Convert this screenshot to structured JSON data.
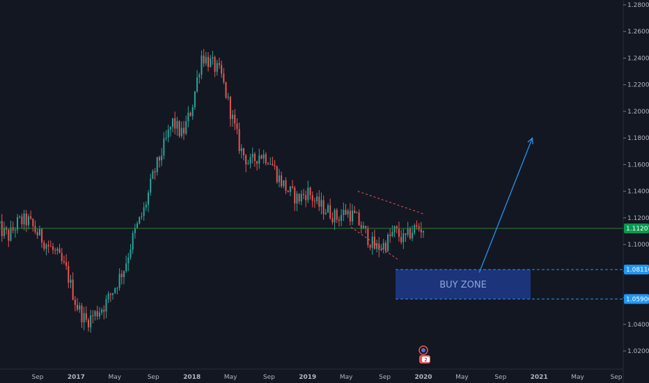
{
  "chart_data": {
    "type": "candlestick",
    "title": "",
    "price_axis": {
      "min": 1.0,
      "max": 1.29,
      "ticks": [
        "1.28000",
        "1.26000",
        "1.24000",
        "1.22000",
        "1.20000",
        "1.18000",
        "1.16000",
        "1.14000",
        "1.12000",
        "1.10000",
        "1.08000",
        "1.06000",
        "1.04000",
        "1.02000"
      ],
      "tick_values": [
        1.28,
        1.26,
        1.24,
        1.22,
        1.2,
        1.18,
        1.16,
        1.14,
        1.12,
        1.1,
        1.08,
        1.06,
        1.04,
        1.02
      ]
    },
    "time_axis": {
      "labels": [
        "Sep",
        "2017",
        "May",
        "Sep",
        "2018",
        "May",
        "Sep",
        "2019",
        "May",
        "Sep",
        "2020",
        "May",
        "Sep",
        "2021",
        "May",
        "Sep"
      ],
      "bold_labels": [
        "2017",
        "2018",
        "2019",
        "2020",
        "2021"
      ],
      "x_months": [
        0,
        4,
        8,
        12,
        16,
        20,
        24,
        28,
        32,
        36,
        40,
        44,
        48,
        52,
        56,
        60
      ]
    },
    "trend_points": [
      [
        -6,
        1.13
      ],
      [
        -5,
        1.125
      ],
      [
        -4,
        1.112
      ],
      [
        -3,
        1.106
      ],
      [
        -2,
        1.117
      ],
      [
        -1,
        1.118
      ],
      [
        0,
        1.108
      ],
      [
        1,
        1.1
      ],
      [
        2,
        1.092
      ],
      [
        3,
        1.08
      ],
      [
        4,
        1.055
      ],
      [
        5,
        1.042
      ],
      [
        6,
        1.048
      ],
      [
        7,
        1.055
      ],
      [
        8,
        1.068
      ],
      [
        9,
        1.083
      ],
      [
        10,
        1.108
      ],
      [
        11,
        1.125
      ],
      [
        12,
        1.152
      ],
      [
        13,
        1.172
      ],
      [
        14,
        1.192
      ],
      [
        15,
        1.182
      ],
      [
        16,
        1.203
      ],
      [
        17,
        1.242
      ],
      [
        18,
        1.236
      ],
      [
        19,
        1.228
      ],
      [
        20,
        1.2
      ],
      [
        21,
        1.172
      ],
      [
        22,
        1.16
      ],
      [
        23,
        1.168
      ],
      [
        24,
        1.165
      ],
      [
        25,
        1.15
      ],
      [
        26,
        1.14
      ],
      [
        27,
        1.134
      ],
      [
        28,
        1.14
      ],
      [
        29,
        1.13
      ],
      [
        30,
        1.126
      ],
      [
        31,
        1.12
      ],
      [
        32,
        1.125
      ],
      [
        33,
        1.12
      ],
      [
        34,
        1.108
      ],
      [
        35,
        1.097
      ],
      [
        36,
        1.1
      ],
      [
        37,
        1.11
      ],
      [
        38,
        1.103
      ],
      [
        39,
        1.112
      ],
      [
        40,
        1.112
      ]
    ],
    "current_price": "1.11207",
    "current_price_value": 1.11207,
    "zone": {
      "label": "BUY ZONE",
      "top_value": 1.08116,
      "bottom_value": 1.05906,
      "top_label": "1.08116",
      "bottom_label": "1.05906",
      "color": "#1e3a8a"
    },
    "wedge": {
      "upper": [
        [
          33.2,
          1.14
        ],
        [
          40,
          1.123
        ]
      ],
      "lower": [
        [
          32.5,
          1.113
        ],
        [
          37.5,
          1.088
        ]
      ],
      "color": "#ef5350"
    },
    "projection_arrow": {
      "from": [
        45.8,
        1.079
      ],
      "to": [
        51.3,
        1.18
      ],
      "color": "#2196f3"
    },
    "colors": {
      "background": "#131722",
      "up": "#26a69a",
      "down": "#ef5350",
      "price_line": "#2e7d32",
      "price_label": "#089950",
      "zone_label_bg": "#2196f3"
    },
    "event_badges": [
      {
        "text": "2"
      }
    ]
  }
}
